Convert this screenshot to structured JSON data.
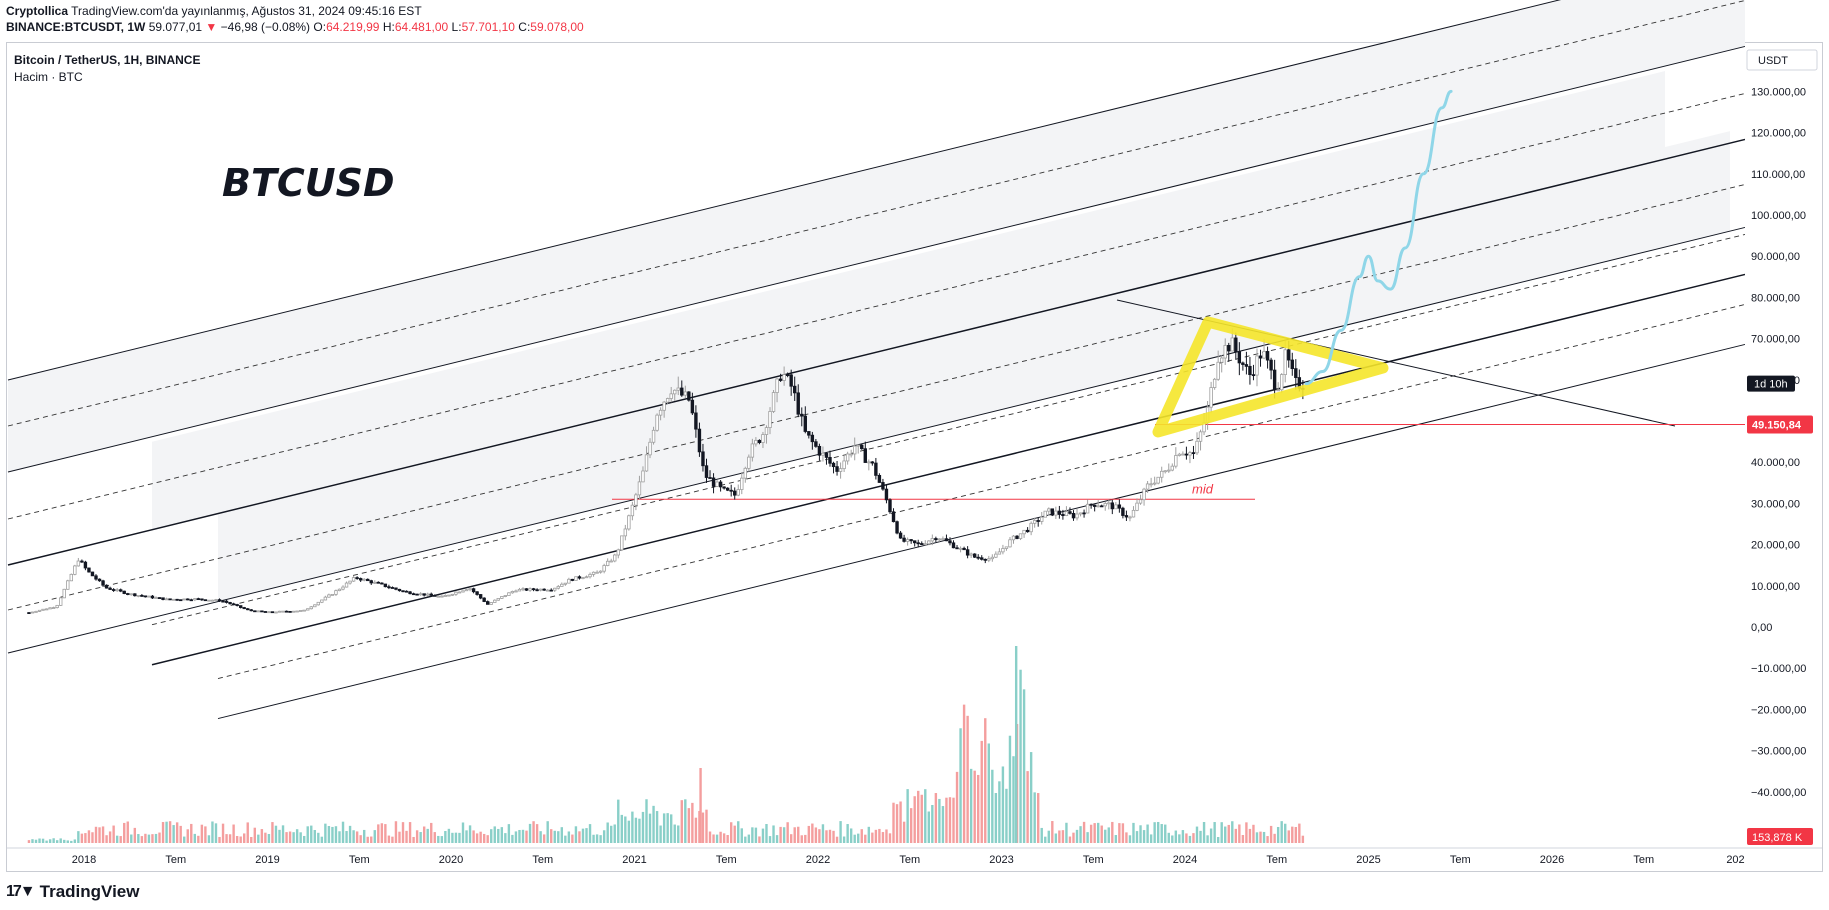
{
  "header": {
    "author": "Cryptollica",
    "published": "TradingView.com'da yayınlanmış, Ağustos 31, 2024 09:45:16 EST",
    "symbol": "BINANCE:BTCUSDT, 1W",
    "last": "59.077,01",
    "arrow": "▼",
    "change": "−46,98 (−0.08%)",
    "o_label": "O:",
    "o": "64.219,99",
    "h_label": "H:",
    "h": "64.481,00",
    "l_label": "L:",
    "l": "57.701,10",
    "c_label": "C:",
    "c": "59.078,00"
  },
  "legend": {
    "title": "Bitcoin / TetherUS, 1H, BINANCE",
    "volume": "Hacim · BTC"
  },
  "chart_title": "BTCUSD",
  "price_axis": {
    "currency": "USDT",
    "ticks": [
      "130.000,00",
      "120.000,00",
      "110.000,00",
      "100.000,00",
      "90.000,00",
      "80.000,00",
      "70.000,00",
      "60.000,00",
      "50.000,00",
      "40.000,00",
      "30.000,00",
      "20.000,00",
      "10.000,00",
      "0,00",
      "−10.000,00",
      "−20.000,00",
      "−30.000,00",
      "−40.000,00"
    ],
    "countdown": "1d 10h",
    "line_label": "49.150,84",
    "volume_label": "153,878 K"
  },
  "time_axis": {
    "ticks": [
      "2018",
      "Tem",
      "2019",
      "Tem",
      "2020",
      "Tem",
      "2021",
      "Tem",
      "2022",
      "Tem",
      "2023",
      "Tem",
      "2024",
      "Tem",
      "2025",
      "Tem",
      "2026",
      "Tem",
      "202"
    ]
  },
  "annotations": {
    "mid": "mid"
  },
  "footer": {
    "brand": "TradingView"
  },
  "colors": {
    "up": "#a0a0a0",
    "down": "#131722",
    "vol_up": "#89cfc8",
    "vol_down": "#f49e9e",
    "hline": "#f23645",
    "triangle": "#f5e62a",
    "projection": "#8fd6e8",
    "band": "#f3f4f6"
  },
  "chart_data": {
    "type": "candlestick",
    "title": "BTCUSD",
    "symbol": "BINANCE:BTCUSDT",
    "timeframe": "1W",
    "yrange": [
      -45000,
      138000
    ],
    "xrange": [
      2017.65,
      2027.05
    ],
    "hline_price": 49150.84,
    "mid_price": 31000,
    "close_path": [
      [
        2017.7,
        3500
      ],
      [
        2017.85,
        5000
      ],
      [
        2017.97,
        16500
      ],
      [
        2018.02,
        13500
      ],
      [
        2018.12,
        9500
      ],
      [
        2018.25,
        8000
      ],
      [
        2018.45,
        6700
      ],
      [
        2018.6,
        6800
      ],
      [
        2018.75,
        6400
      ],
      [
        2018.9,
        4000
      ],
      [
        2019.0,
        3600
      ],
      [
        2019.2,
        4000
      ],
      [
        2019.35,
        8000
      ],
      [
        2019.48,
        12000
      ],
      [
        2019.6,
        10500
      ],
      [
        2019.75,
        8500
      ],
      [
        2019.95,
        7300
      ],
      [
        2020.1,
        9500
      ],
      [
        2020.2,
        5500
      ],
      [
        2020.35,
        9000
      ],
      [
        2020.55,
        9200
      ],
      [
        2020.65,
        11500
      ],
      [
        2020.8,
        13200
      ],
      [
        2020.9,
        17500
      ],
      [
        2020.98,
        28000
      ],
      [
        2021.05,
        38000
      ],
      [
        2021.12,
        52000
      ],
      [
        2021.2,
        58000
      ],
      [
        2021.3,
        55000
      ],
      [
        2021.38,
        37000
      ],
      [
        2021.48,
        33000
      ],
      [
        2021.55,
        32000
      ],
      [
        2021.62,
        42000
      ],
      [
        2021.7,
        47000
      ],
      [
        2021.8,
        62000
      ],
      [
        2021.86,
        58000
      ],
      [
        2021.93,
        47000
      ],
      [
        2022.0,
        43000
      ],
      [
        2022.1,
        38000
      ],
      [
        2022.2,
        44000
      ],
      [
        2022.3,
        39000
      ],
      [
        2022.38,
        30000
      ],
      [
        2022.45,
        21000
      ],
      [
        2022.55,
        20000
      ],
      [
        2022.65,
        22000
      ],
      [
        2022.75,
        19500
      ],
      [
        2022.85,
        17000
      ],
      [
        2022.95,
        16500
      ],
      [
        2023.05,
        21000
      ],
      [
        2023.15,
        24000
      ],
      [
        2023.25,
        28000
      ],
      [
        2023.4,
        27000
      ],
      [
        2023.5,
        30000
      ],
      [
        2023.6,
        29500
      ],
      [
        2023.7,
        26500
      ],
      [
        2023.8,
        34500
      ],
      [
        2023.9,
        38000
      ],
      [
        2023.97,
        43000
      ],
      [
        2024.05,
        42000
      ],
      [
        2024.12,
        52000
      ],
      [
        2024.18,
        66000
      ],
      [
        2024.25,
        69000
      ],
      [
        2024.35,
        61000
      ],
      [
        2024.42,
        67000
      ],
      [
        2024.5,
        58000
      ],
      [
        2024.55,
        66000
      ],
      [
        2024.6,
        59000
      ],
      [
        2024.66,
        59077
      ]
    ],
    "volume_peaks": [
      [
        2022.45,
        48
      ],
      [
        2022.55,
        55
      ],
      [
        2022.75,
        50
      ],
      [
        2022.8,
        160
      ],
      [
        2022.9,
        140
      ],
      [
        2023.0,
        130
      ],
      [
        2023.1,
        203
      ],
      [
        2023.18,
        60
      ]
    ],
    "projection": [
      [
        2024.66,
        59077
      ],
      [
        2024.75,
        62000
      ],
      [
        2024.85,
        72000
      ],
      [
        2024.95,
        85000
      ],
      [
        2025.0,
        90000
      ],
      [
        2025.05,
        84000
      ],
      [
        2025.12,
        82000
      ],
      [
        2025.2,
        92000
      ],
      [
        2025.3,
        110000
      ],
      [
        2025.4,
        126000
      ],
      [
        2025.45,
        130000
      ]
    ],
    "channel": {
      "left_year": 2017.7,
      "right_year": 2026.7
    }
  }
}
